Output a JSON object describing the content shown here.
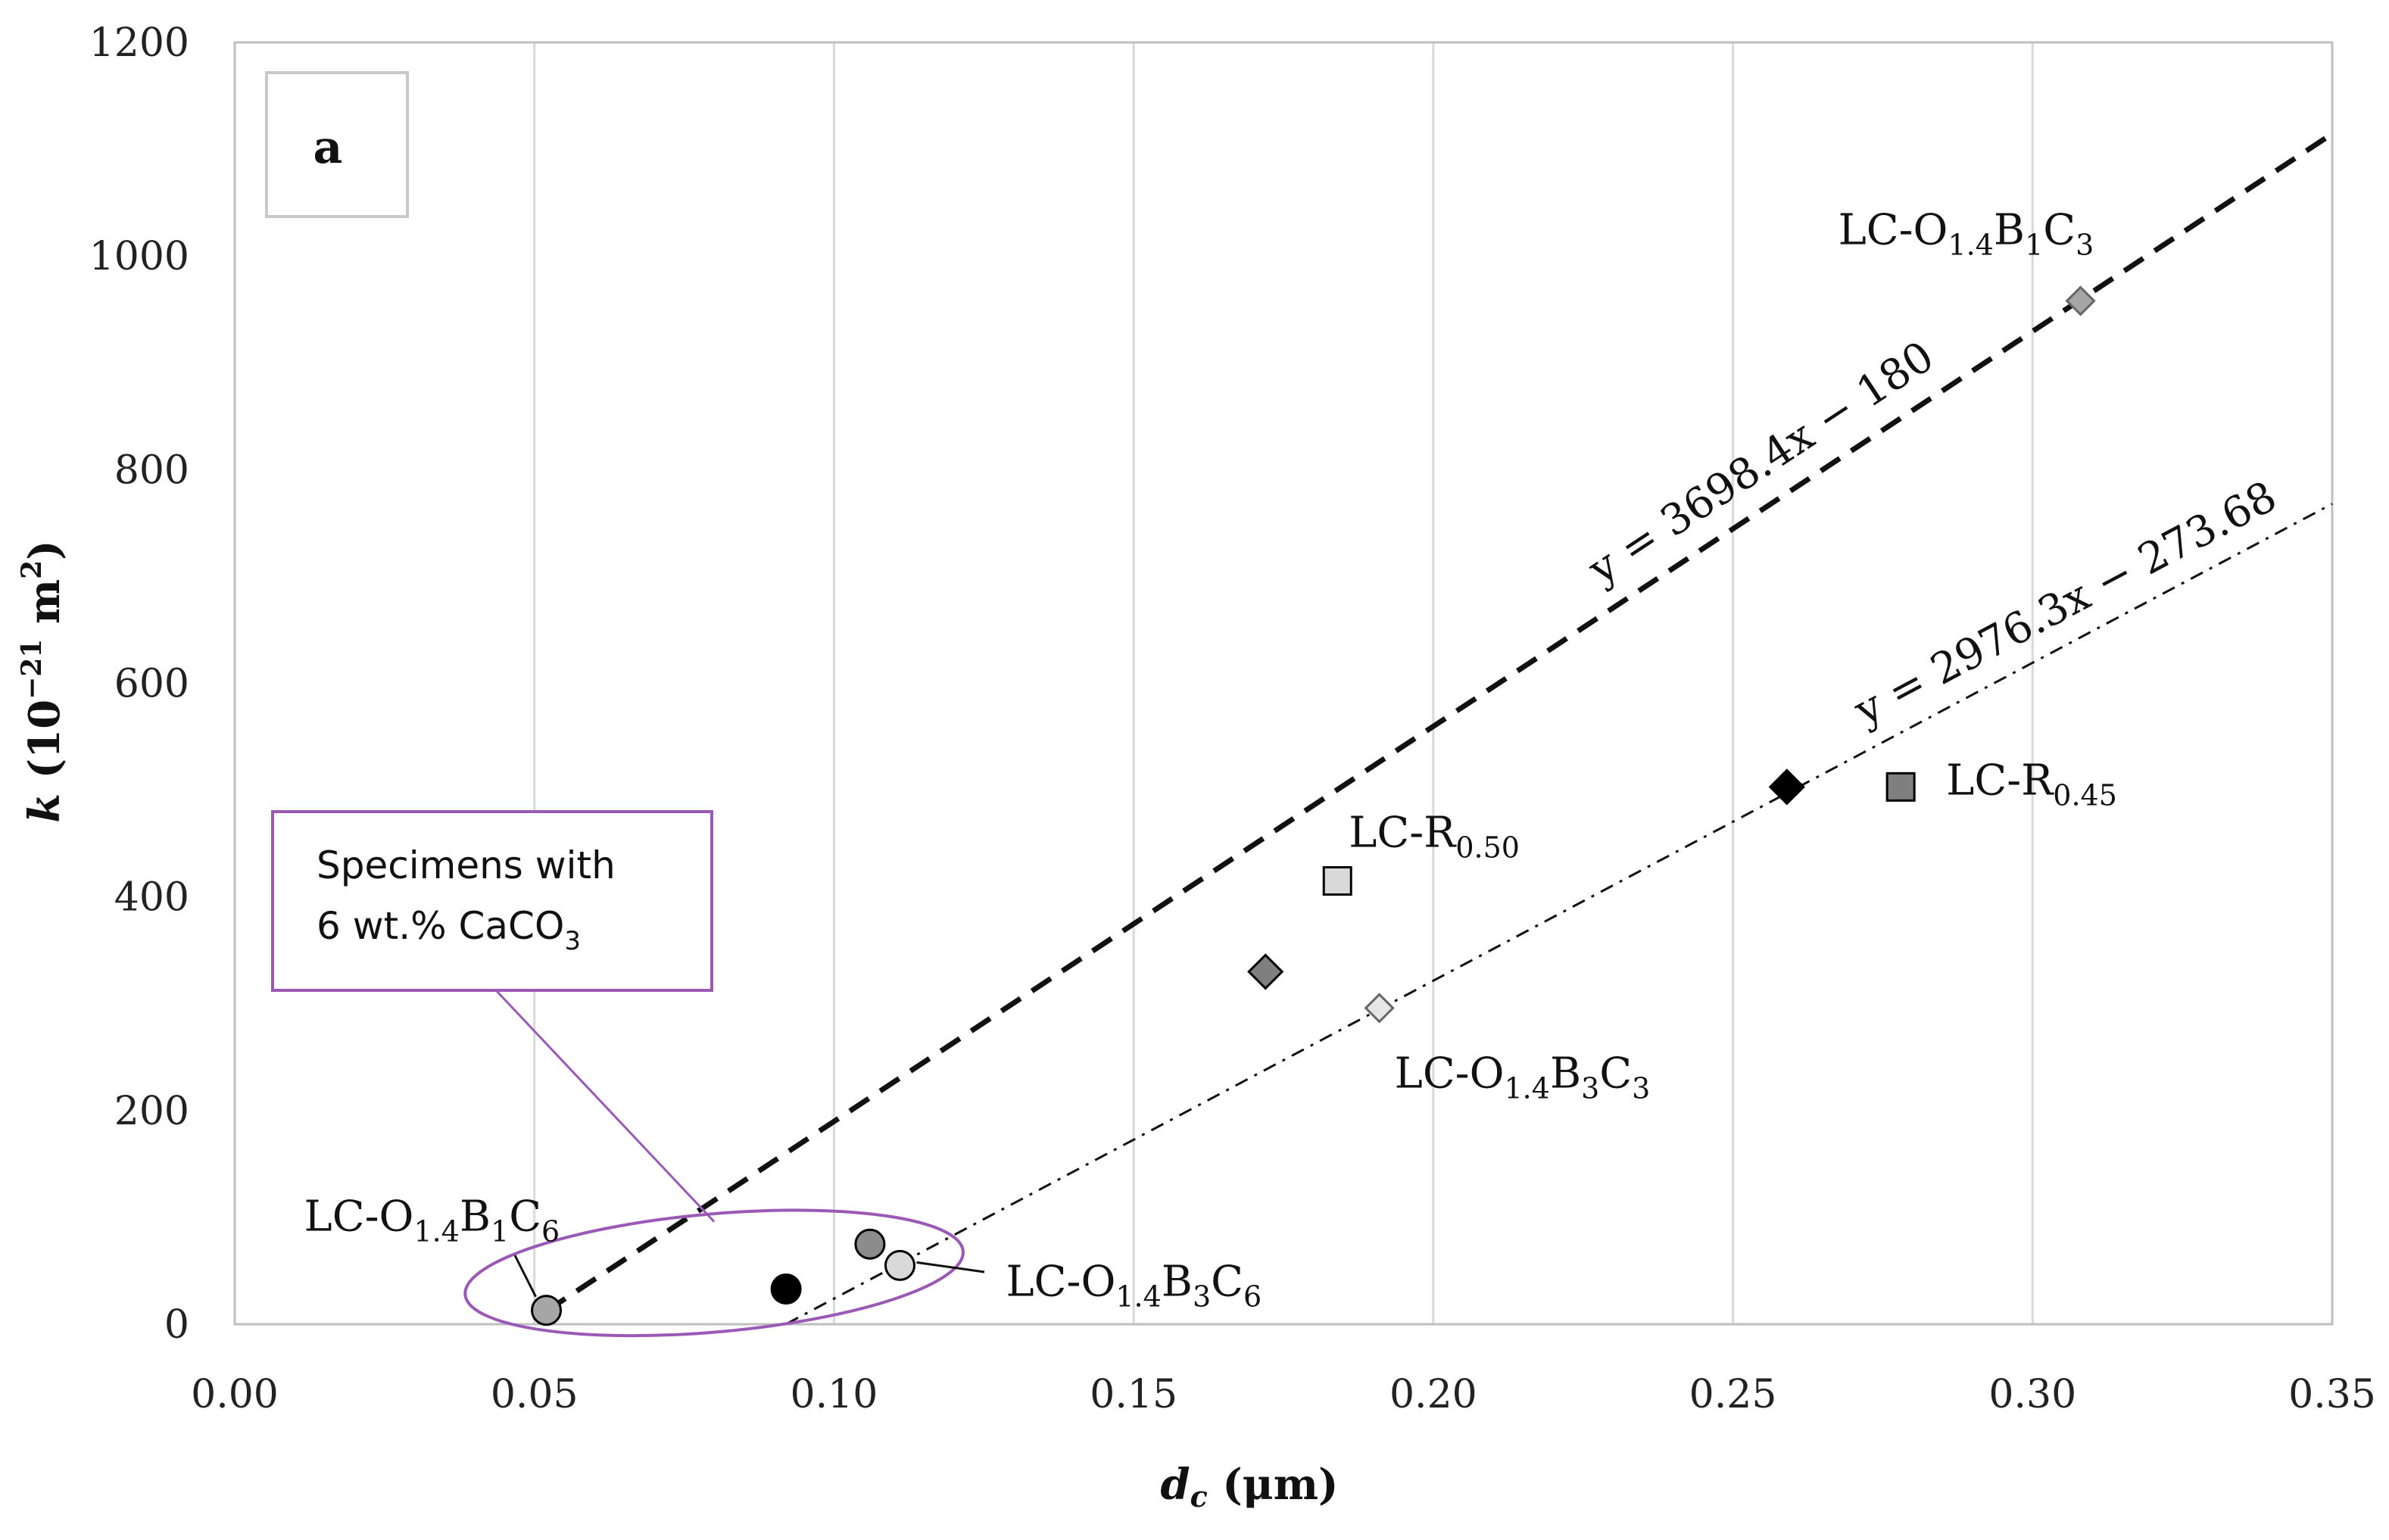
{
  "chart_data": {
    "type": "scatter",
    "panel_label": "a",
    "xlabel": {
      "main": "d",
      "sub": "c",
      "unit": " (μm)"
    },
    "ylabel": {
      "main": "k",
      "unit_open": " (10",
      "unit_exp": "−21",
      "unit_mid": " m",
      "unit_exp2": "2",
      "unit_close": ")"
    },
    "xlim": [
      0.0,
      0.35
    ],
    "ylim": [
      0,
      1200
    ],
    "x_ticks": [
      0.0,
      0.05,
      0.1,
      0.15,
      0.2,
      0.25,
      0.3,
      0.35
    ],
    "x_tick_labels": [
      "0.00",
      "0.05",
      "0.10",
      "0.15",
      "0.20",
      "0.25",
      "0.30",
      "0.35"
    ],
    "y_ticks": [
      0,
      200,
      400,
      600,
      800,
      1000,
      1200
    ],
    "y_tick_labels": [
      "0",
      "200",
      "400",
      "600",
      "800",
      "1000",
      "1200"
    ],
    "points": [
      {
        "name": "LC-O1.4B1C3",
        "x": 0.308,
        "y": 958,
        "marker": "diamond",
        "fill": "#a6a6a6",
        "size": "small"
      },
      {
        "name": "LC-R0.50",
        "x": 0.184,
        "y": 415,
        "marker": "square",
        "fill": "#d9d9d9"
      },
      {
        "name": "LC-R0.45",
        "x": 0.278,
        "y": 503,
        "marker": "square",
        "fill": "#7f7f7f"
      },
      {
        "name": "black-diamond",
        "x": 0.259,
        "y": 503,
        "marker": "diamond",
        "fill": "#000000"
      },
      {
        "name": "dark-gray-diamond",
        "x": 0.172,
        "y": 330,
        "marker": "diamond",
        "fill": "#7f7f7f"
      },
      {
        "name": "LC-O1.4B3C3",
        "x": 0.191,
        "y": 296,
        "marker": "diamond",
        "fill": "#e6e6e6",
        "size": "small"
      },
      {
        "name": "LC-O1.4B1C6",
        "x": 0.052,
        "y": 13,
        "marker": "circle",
        "fill": "#a6a6a6"
      },
      {
        "name": "black-circle",
        "x": 0.092,
        "y": 33,
        "marker": "circle",
        "fill": "#000000"
      },
      {
        "name": "dark-gray-circle",
        "x": 0.106,
        "y": 75,
        "marker": "circle",
        "fill": "#8c8c8c"
      },
      {
        "name": "LC-O1.4B3C6",
        "x": 0.111,
        "y": 55,
        "marker": "circle",
        "fill": "#d9d9d9"
      }
    ],
    "trendlines": [
      {
        "name": "dashed-fit",
        "equation": "y = 3698.4x − 180",
        "slope": 3698.4,
        "intercept": -180,
        "x_start": 0.052,
        "x_end": 0.35,
        "style": "dashed"
      },
      {
        "name": "dashdot-fit",
        "equation": "y = 2976.3x − 273.68",
        "slope": 2976.3,
        "intercept": -273.68,
        "x_start": 0.092,
        "x_end": 0.35,
        "style": "dashdot"
      }
    ],
    "annotations": [
      {
        "name": "label-b1c3",
        "base": "LC-O",
        "parts": [
          [
            "1.4",
            "sub"
          ],
          [
            "B",
            ""
          ],
          [
            "1",
            "sub"
          ],
          [
            "C",
            ""
          ],
          [
            "3",
            "sub"
          ]
        ]
      },
      {
        "name": "label-r050",
        "base": "LC-R",
        "parts": [
          [
            "0.50",
            "sub"
          ]
        ]
      },
      {
        "name": "label-r045",
        "base": "LC-R",
        "parts": [
          [
            "0.45",
            "sub"
          ]
        ]
      },
      {
        "name": "label-b3c3",
        "base": "LC-O",
        "parts": [
          [
            "1.4",
            "sub"
          ],
          [
            "B",
            ""
          ],
          [
            "3",
            "sub"
          ],
          [
            "C",
            ""
          ],
          [
            "3",
            "sub"
          ]
        ]
      },
      {
        "name": "label-b1c6",
        "base": "LC-O",
        "parts": [
          [
            "1.4",
            "sub"
          ],
          [
            "B",
            ""
          ],
          [
            "1",
            "sub"
          ],
          [
            "C",
            ""
          ],
          [
            "6",
            "sub"
          ]
        ]
      },
      {
        "name": "label-b3c6",
        "base": "LC-O",
        "parts": [
          [
            "1.4",
            "sub"
          ],
          [
            "B",
            ""
          ],
          [
            "3",
            "sub"
          ],
          [
            "C",
            ""
          ],
          [
            "6",
            "sub"
          ]
        ]
      }
    ],
    "callout": {
      "line1": "Specimens with",
      "line2_base": "6 wt.% CaCO",
      "line2_sub": "3"
    },
    "colors": {
      "callout": "#9b59b6",
      "axis": "#bfbfbf",
      "grid": "#d9d9d9"
    }
  }
}
